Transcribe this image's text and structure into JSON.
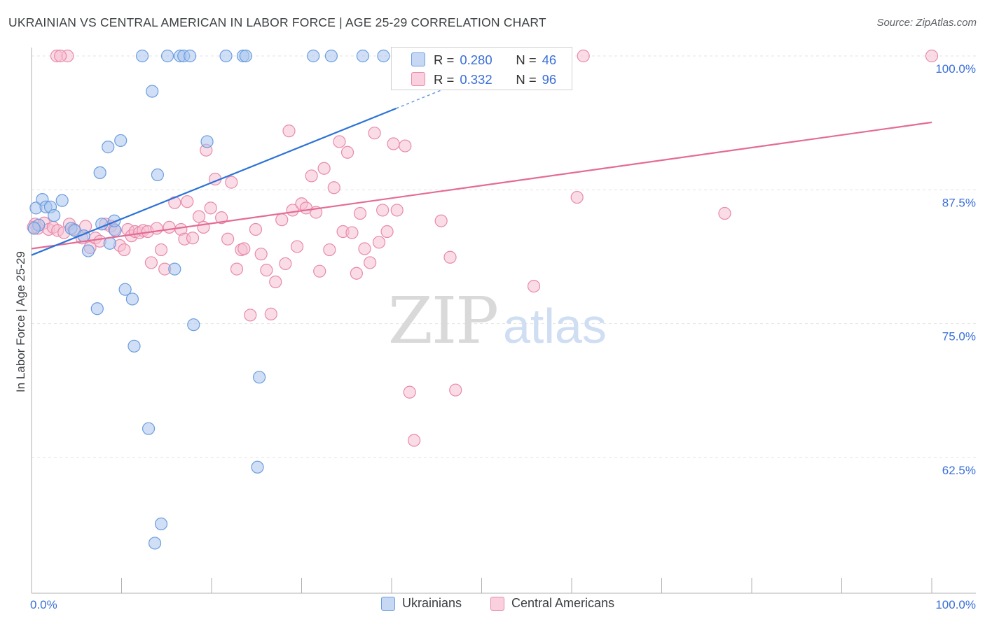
{
  "title": "UKRAINIAN VS CENTRAL AMERICAN IN LABOR FORCE | AGE 25-29 CORRELATION CHART",
  "source": "Source: ZipAtlas.com",
  "watermark": {
    "zip": "ZIP",
    "atlas": "atlas"
  },
  "colors": {
    "blue_fill": "#a9c4ec",
    "blue_stroke": "#6a9de0",
    "blue_line": "#2b73d6",
    "pink_fill": "#f6bfd1",
    "pink_stroke": "#e88aab",
    "pink_line": "#e46b96",
    "tick_label": "#3a6fd8",
    "grid": "#e3e3e3"
  },
  "stats": {
    "rows": [
      {
        "r_label": "R =",
        "r_value": "0.280",
        "n_label": "N =",
        "n_value": "46"
      },
      {
        "r_label": "R =",
        "r_value": "0.332",
        "n_label": "N =",
        "n_value": "96"
      }
    ]
  },
  "legend": {
    "items": [
      "Ukrainians",
      "Central Americans"
    ]
  },
  "chart_data": {
    "type": "scatter",
    "title": "UKRAINIAN VS CENTRAL AMERICAN IN LABOR FORCE | AGE 25-29 CORRELATION CHART",
    "xlabel": "",
    "ylabel": "In Labor Force | Age 25-29",
    "xlim": [
      0,
      100
    ],
    "ylim": [
      50.5,
      101.5
    ],
    "x_tick_labels": [
      "0.0%",
      "100.0%"
    ],
    "y_ticks": [
      62.5,
      75.0,
      87.5,
      100.0
    ],
    "y_tick_labels": [
      "62.5%",
      "75.0%",
      "87.5%",
      "100.0%"
    ],
    "grid": true,
    "legend_position": "bottom",
    "series": [
      {
        "name": "Ukrainians",
        "r": 0.28,
        "n": 46,
        "trend": {
          "x0": 0,
          "y0": 81.4,
          "x1": 40.5,
          "y1": 95.1,
          "dash_to_x": 45.5,
          "dash_to_y": 96.8
        },
        "points": [
          [
            0.5,
            85.8
          ],
          [
            0.8,
            84.2
          ],
          [
            1.2,
            86.6
          ],
          [
            1.6,
            85.9
          ],
          [
            2.1,
            85.9
          ],
          [
            2.5,
            85.1
          ],
          [
            3.4,
            86.5
          ],
          [
            4.4,
            83.9
          ],
          [
            4.8,
            83.7
          ],
          [
            5.8,
            83.2
          ],
          [
            6.3,
            81.8
          ],
          [
            7.3,
            76.4
          ],
          [
            7.6,
            89.1
          ],
          [
            7.8,
            84.3
          ],
          [
            8.5,
            91.5
          ],
          [
            8.7,
            82.5
          ],
          [
            9.3,
            83.7
          ],
          [
            9.2,
            84.6
          ],
          [
            9.9,
            92.1
          ],
          [
            10.4,
            78.2
          ],
          [
            11.2,
            77.3
          ],
          [
            11.4,
            72.9
          ],
          [
            12.3,
            100.0
          ],
          [
            13.0,
            65.2
          ],
          [
            13.4,
            96.7
          ],
          [
            13.7,
            54.5
          ],
          [
            14.0,
            88.9
          ],
          [
            14.4,
            56.3
          ],
          [
            15.1,
            100.0
          ],
          [
            15.9,
            80.1
          ],
          [
            16.5,
            100.0
          ],
          [
            16.9,
            100.0
          ],
          [
            17.6,
            100.0
          ],
          [
            18.0,
            74.9
          ],
          [
            19.5,
            92.0
          ],
          [
            21.6,
            100.0
          ],
          [
            23.5,
            100.0
          ],
          [
            23.8,
            100.0
          ],
          [
            25.1,
            61.6
          ],
          [
            25.3,
            70.0
          ],
          [
            31.3,
            100.0
          ],
          [
            33.3,
            100.0
          ],
          [
            36.8,
            100.0
          ],
          [
            39.1,
            100.0
          ],
          [
            42.5,
            100.0
          ],
          [
            0.3,
            83.9
          ]
        ]
      },
      {
        "name": "Central Americans",
        "r": 0.332,
        "n": 96,
        "trend": {
          "x0": 0,
          "y0": 82.0,
          "x1": 100,
          "y1": 93.8
        },
        "points": [
          [
            0.4,
            84.3
          ],
          [
            0.7,
            83.9
          ],
          [
            1.4,
            84.4
          ],
          [
            1.9,
            83.8
          ],
          [
            2.4,
            84.0
          ],
          [
            2.9,
            83.7
          ],
          [
            3.6,
            83.5
          ],
          [
            4.2,
            84.3
          ],
          [
            4.7,
            83.8
          ],
          [
            5.6,
            83.0
          ],
          [
            6.0,
            84.1
          ],
          [
            6.5,
            82.1
          ],
          [
            7.1,
            83.0
          ],
          [
            7.6,
            82.7
          ],
          [
            8.2,
            84.3
          ],
          [
            8.8,
            84.1
          ],
          [
            9.2,
            83.8
          ],
          [
            9.8,
            82.3
          ],
          [
            10.3,
            81.9
          ],
          [
            10.7,
            83.8
          ],
          [
            11.1,
            83.2
          ],
          [
            11.5,
            83.6
          ],
          [
            12.0,
            83.5
          ],
          [
            12.4,
            83.7
          ],
          [
            12.9,
            83.6
          ],
          [
            13.3,
            80.7
          ],
          [
            13.9,
            83.9
          ],
          [
            14.4,
            81.9
          ],
          [
            14.8,
            80.1
          ],
          [
            15.3,
            84.0
          ],
          [
            15.9,
            86.3
          ],
          [
            16.6,
            83.8
          ],
          [
            17.0,
            82.9
          ],
          [
            17.3,
            86.4
          ],
          [
            17.9,
            83.0
          ],
          [
            18.6,
            85.0
          ],
          [
            19.1,
            84.0
          ],
          [
            19.4,
            91.2
          ],
          [
            19.9,
            85.8
          ],
          [
            20.4,
            88.5
          ],
          [
            21.1,
            84.9
          ],
          [
            21.8,
            82.9
          ],
          [
            22.2,
            88.2
          ],
          [
            22.8,
            80.1
          ],
          [
            23.3,
            81.9
          ],
          [
            23.6,
            82.0
          ],
          [
            24.3,
            75.8
          ],
          [
            24.9,
            83.8
          ],
          [
            25.5,
            81.5
          ],
          [
            26.1,
            80.0
          ],
          [
            26.6,
            75.9
          ],
          [
            27.1,
            78.9
          ],
          [
            27.8,
            84.7
          ],
          [
            28.2,
            80.6
          ],
          [
            28.6,
            93.0
          ],
          [
            29.0,
            85.6
          ],
          [
            29.5,
            82.2
          ],
          [
            30.0,
            86.2
          ],
          [
            30.5,
            85.8
          ],
          [
            31.1,
            88.8
          ],
          [
            31.6,
            85.4
          ],
          [
            32.0,
            79.9
          ],
          [
            32.5,
            89.5
          ],
          [
            33.1,
            81.9
          ],
          [
            33.6,
            87.7
          ],
          [
            34.2,
            92.0
          ],
          [
            34.6,
            83.6
          ],
          [
            35.1,
            91.0
          ],
          [
            35.6,
            83.5
          ],
          [
            36.1,
            79.7
          ],
          [
            36.5,
            85.3
          ],
          [
            37.0,
            82.0
          ],
          [
            37.6,
            80.7
          ],
          [
            38.1,
            92.8
          ],
          [
            38.6,
            82.6
          ],
          [
            39.0,
            85.6
          ],
          [
            39.5,
            83.6
          ],
          [
            40.2,
            91.8
          ],
          [
            40.6,
            85.6
          ],
          [
            41.5,
            91.6
          ],
          [
            42.0,
            68.6
          ],
          [
            42.5,
            64.1
          ],
          [
            45.5,
            84.6
          ],
          [
            46.5,
            81.2
          ],
          [
            47.1,
            68.8
          ],
          [
            48.1,
            100.0
          ],
          [
            51.0,
            100.0
          ],
          [
            55.8,
            78.5
          ],
          [
            60.6,
            86.8
          ],
          [
            61.3,
            100.0
          ],
          [
            77.0,
            85.3
          ],
          [
            100.0,
            100.0
          ],
          [
            2.8,
            100.0
          ],
          [
            4.0,
            100.0
          ],
          [
            3.2,
            100.0
          ],
          [
            0.2,
            84.0
          ]
        ]
      }
    ]
  }
}
